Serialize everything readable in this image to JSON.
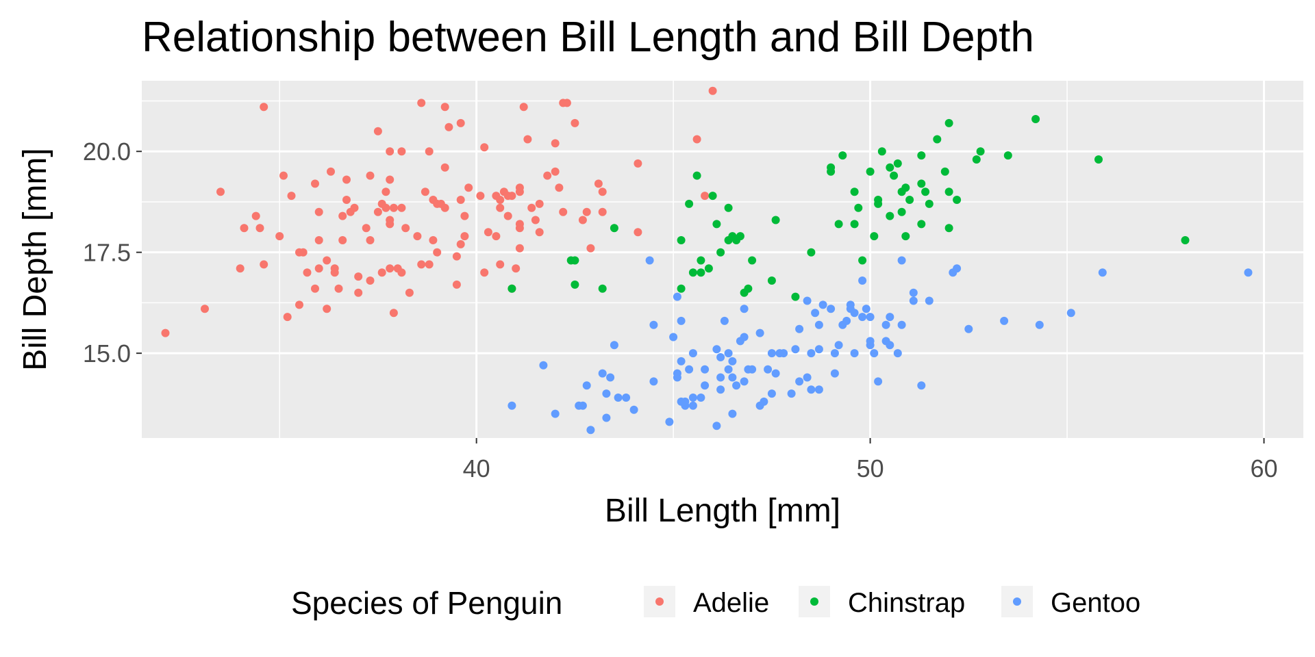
{
  "chart_data": {
    "type": "scatter",
    "title": "Relationship between Bill Length and Bill Depth",
    "xlabel": "Bill Length [mm]",
    "ylabel": "Bill Depth [mm]",
    "xlim": [
      31.5,
      61
    ],
    "ylim": [
      12.9,
      21.75
    ],
    "x_ticks": [
      40,
      50,
      60
    ],
    "y_ticks": [
      15.0,
      17.5,
      20.0
    ],
    "x_tick_labels": [
      "40",
      "50",
      "60"
    ],
    "y_tick_labels": [
      "15.0",
      "17.5",
      "20.0"
    ],
    "grid": true,
    "legend": {
      "title": "Species of Penguin",
      "position": "bottom"
    },
    "series": [
      {
        "name": "Adelie",
        "color": "#F8766D",
        "points": [
          [
            32.1,
            15.5
          ],
          [
            33.1,
            16.1
          ],
          [
            33.5,
            19.0
          ],
          [
            34.0,
            17.1
          ],
          [
            34.1,
            18.1
          ],
          [
            34.4,
            18.4
          ],
          [
            34.5,
            18.1
          ],
          [
            34.6,
            21.1
          ],
          [
            34.6,
            17.2
          ],
          [
            35.0,
            17.9
          ],
          [
            35.1,
            19.4
          ],
          [
            35.3,
            18.9
          ],
          [
            35.2,
            15.9
          ],
          [
            35.5,
            16.2
          ],
          [
            35.5,
            17.5
          ],
          [
            35.6,
            17.5
          ],
          [
            35.7,
            17.0
          ],
          [
            35.9,
            19.2
          ],
          [
            35.9,
            16.6
          ],
          [
            36.0,
            17.1
          ],
          [
            36.0,
            17.8
          ],
          [
            36.0,
            18.5
          ],
          [
            36.2,
            16.1
          ],
          [
            36.2,
            17.3
          ],
          [
            36.3,
            19.5
          ],
          [
            36.4,
            17.0
          ],
          [
            36.5,
            16.6
          ],
          [
            36.6,
            17.8
          ],
          [
            36.6,
            18.4
          ],
          [
            36.7,
            19.3
          ],
          [
            36.7,
            18.8
          ],
          [
            36.8,
            18.5
          ],
          [
            36.9,
            18.6
          ],
          [
            37.0,
            16.9
          ],
          [
            37.0,
            16.5
          ],
          [
            37.2,
            18.1
          ],
          [
            37.3,
            19.4
          ],
          [
            37.3,
            17.8
          ],
          [
            37.3,
            16.8
          ],
          [
            37.5,
            18.5
          ],
          [
            37.6,
            17.0
          ],
          [
            37.6,
            18.7
          ],
          [
            37.7,
            18.6
          ],
          [
            37.7,
            19.0
          ],
          [
            37.8,
            18.3
          ],
          [
            37.8,
            17.1
          ],
          [
            37.8,
            20.0
          ],
          [
            37.8,
            19.3
          ],
          [
            37.9,
            18.6
          ],
          [
            37.5,
            20.5
          ],
          [
            37.9,
            16.0
          ],
          [
            38.0,
            17.1
          ],
          [
            38.1,
            18.6
          ],
          [
            38.1,
            17.0
          ],
          [
            38.2,
            18.1
          ],
          [
            38.3,
            16.5
          ],
          [
            38.5,
            17.9
          ],
          [
            38.6,
            21.2
          ],
          [
            38.6,
            17.2
          ],
          [
            38.7,
            19.0
          ],
          [
            38.8,
            17.2
          ],
          [
            38.8,
            20.0
          ],
          [
            38.9,
            18.8
          ],
          [
            38.9,
            17.8
          ],
          [
            39.0,
            18.7
          ],
          [
            39.0,
            17.5
          ],
          [
            39.1,
            18.7
          ],
          [
            39.2,
            19.6
          ],
          [
            39.2,
            21.1
          ],
          [
            39.3,
            20.6
          ],
          [
            39.5,
            17.4
          ],
          [
            39.5,
            16.7
          ],
          [
            39.6,
            17.7
          ],
          [
            39.6,
            18.8
          ],
          [
            39.6,
            20.7
          ],
          [
            39.7,
            18.4
          ],
          [
            39.7,
            17.9
          ],
          [
            39.8,
            19.1
          ],
          [
            40.1,
            18.9
          ],
          [
            40.2,
            17.0
          ],
          [
            40.2,
            20.1
          ],
          [
            40.3,
            18.0
          ],
          [
            40.5,
            17.9
          ],
          [
            40.5,
            18.9
          ],
          [
            40.6,
            18.6
          ],
          [
            40.6,
            17.2
          ],
          [
            40.7,
            19.0
          ],
          [
            40.8,
            18.4
          ],
          [
            40.9,
            16.6
          ],
          [
            41.0,
            17.1
          ],
          [
            41.1,
            17.6
          ],
          [
            41.1,
            18.2
          ],
          [
            41.1,
            19.0
          ],
          [
            41.1,
            19.1
          ],
          [
            41.1,
            18.1
          ],
          [
            41.3,
            20.3
          ],
          [
            41.4,
            18.6
          ],
          [
            41.5,
            18.3
          ],
          [
            41.6,
            18.0
          ],
          [
            41.8,
            19.4
          ],
          [
            42.0,
            20.2
          ],
          [
            42.1,
            19.1
          ],
          [
            42.2,
            18.5
          ],
          [
            42.2,
            21.2
          ],
          [
            42.3,
            21.2
          ],
          [
            42.5,
            20.7
          ],
          [
            42.7,
            18.3
          ],
          [
            42.8,
            18.5
          ],
          [
            42.9,
            17.6
          ],
          [
            43.1,
            19.2
          ],
          [
            43.2,
            19.0
          ],
          [
            43.2,
            18.5
          ],
          [
            44.1,
            19.7
          ],
          [
            44.1,
            18.0
          ],
          [
            45.8,
            18.9
          ],
          [
            46.0,
            21.5
          ],
          [
            45.6,
            20.3
          ],
          [
            40.6,
            18.8
          ],
          [
            40.8,
            18.9
          ],
          [
            41.2,
            21.1
          ],
          [
            39.2,
            18.6
          ],
          [
            40.9,
            18.9
          ],
          [
            42.0,
            19.5
          ],
          [
            41.6,
            18.7
          ],
          [
            38.1,
            20.0
          ],
          [
            36.4,
            17.1
          ],
          [
            37.8,
            18.2
          ]
        ]
      },
      {
        "name": "Chinstrap",
        "color": "#00BA38",
        "points": [
          [
            40.9,
            16.6
          ],
          [
            42.4,
            17.3
          ],
          [
            42.5,
            17.3
          ],
          [
            42.5,
            16.7
          ],
          [
            43.2,
            16.6
          ],
          [
            43.5,
            18.1
          ],
          [
            45.2,
            17.8
          ],
          [
            45.2,
            16.6
          ],
          [
            45.4,
            18.7
          ],
          [
            45.5,
            17.0
          ],
          [
            45.6,
            19.4
          ],
          [
            45.7,
            17.0
          ],
          [
            45.7,
            17.3
          ],
          [
            45.9,
            17.1
          ],
          [
            46.0,
            18.9
          ],
          [
            46.1,
            18.2
          ],
          [
            46.2,
            17.5
          ],
          [
            46.4,
            18.6
          ],
          [
            46.4,
            17.8
          ],
          [
            46.5,
            17.9
          ],
          [
            46.6,
            17.8
          ],
          [
            46.7,
            17.9
          ],
          [
            46.8,
            16.5
          ],
          [
            46.9,
            16.6
          ],
          [
            47.0,
            17.3
          ],
          [
            47.5,
            16.8
          ],
          [
            47.6,
            18.3
          ],
          [
            48.1,
            16.4
          ],
          [
            48.5,
            17.5
          ],
          [
            49.0,
            19.5
          ],
          [
            49.0,
            19.6
          ],
          [
            49.2,
            18.2
          ],
          [
            49.3,
            19.9
          ],
          [
            49.6,
            19.0
          ],
          [
            49.6,
            18.2
          ],
          [
            49.7,
            18.6
          ],
          [
            49.8,
            17.3
          ],
          [
            50.0,
            19.5
          ],
          [
            50.1,
            17.9
          ],
          [
            50.2,
            18.8
          ],
          [
            50.2,
            18.7
          ],
          [
            50.3,
            20.0
          ],
          [
            50.5,
            18.4
          ],
          [
            50.5,
            19.6
          ],
          [
            50.6,
            19.4
          ],
          [
            50.7,
            19.7
          ],
          [
            50.8,
            19.0
          ],
          [
            50.8,
            18.5
          ],
          [
            50.9,
            19.1
          ],
          [
            50.9,
            17.9
          ],
          [
            51.0,
            18.8
          ],
          [
            51.3,
            19.2
          ],
          [
            51.3,
            18.2
          ],
          [
            51.3,
            19.9
          ],
          [
            51.4,
            19.0
          ],
          [
            51.5,
            18.7
          ],
          [
            51.7,
            20.3
          ],
          [
            51.9,
            19.5
          ],
          [
            52.0,
            19.0
          ],
          [
            52.0,
            18.1
          ],
          [
            52.0,
            20.7
          ],
          [
            52.2,
            18.8
          ],
          [
            52.7,
            19.8
          ],
          [
            52.8,
            20.0
          ],
          [
            53.5,
            19.9
          ],
          [
            54.2,
            20.8
          ],
          [
            55.8,
            19.8
          ],
          [
            58.0,
            17.8
          ]
        ]
      },
      {
        "name": "Gentoo",
        "color": "#619CFF",
        "points": [
          [
            40.9,
            13.7
          ],
          [
            41.7,
            14.7
          ],
          [
            42.0,
            13.5
          ],
          [
            42.6,
            13.7
          ],
          [
            42.7,
            13.7
          ],
          [
            42.8,
            14.2
          ],
          [
            42.9,
            13.1
          ],
          [
            43.2,
            14.5
          ],
          [
            43.3,
            13.4
          ],
          [
            43.3,
            14.0
          ],
          [
            43.4,
            14.4
          ],
          [
            43.5,
            15.2
          ],
          [
            43.6,
            13.9
          ],
          [
            43.8,
            13.9
          ],
          [
            44.0,
            13.6
          ],
          [
            44.4,
            17.3
          ],
          [
            44.5,
            14.3
          ],
          [
            44.5,
            15.7
          ],
          [
            44.9,
            13.3
          ],
          [
            45.0,
            15.4
          ],
          [
            45.1,
            14.4
          ],
          [
            45.1,
            14.5
          ],
          [
            45.2,
            13.8
          ],
          [
            45.2,
            14.8
          ],
          [
            45.2,
            15.8
          ],
          [
            45.3,
            13.7
          ],
          [
            45.3,
            13.8
          ],
          [
            45.4,
            14.6
          ],
          [
            45.5,
            13.7
          ],
          [
            45.5,
            13.9
          ],
          [
            45.5,
            15.0
          ],
          [
            45.7,
            13.9
          ],
          [
            45.8,
            14.2
          ],
          [
            45.8,
            14.6
          ],
          [
            46.1,
            13.2
          ],
          [
            46.1,
            15.1
          ],
          [
            46.2,
            14.1
          ],
          [
            46.2,
            14.4
          ],
          [
            46.2,
            14.9
          ],
          [
            46.3,
            15.8
          ],
          [
            46.4,
            14.6
          ],
          [
            46.4,
            15.0
          ],
          [
            46.5,
            13.5
          ],
          [
            46.5,
            14.4
          ],
          [
            46.5,
            14.8
          ],
          [
            46.6,
            14.2
          ],
          [
            46.7,
            15.3
          ],
          [
            46.8,
            14.3
          ],
          [
            46.8,
            15.4
          ],
          [
            46.8,
            16.1
          ],
          [
            46.9,
            14.6
          ],
          [
            47.2,
            13.7
          ],
          [
            47.2,
            15.5
          ],
          [
            47.3,
            13.8
          ],
          [
            47.4,
            14.6
          ],
          [
            47.5,
            14.0
          ],
          [
            47.5,
            15.0
          ],
          [
            47.6,
            14.5
          ],
          [
            47.7,
            15.0
          ],
          [
            47.8,
            15.0
          ],
          [
            48.1,
            15.1
          ],
          [
            48.2,
            14.3
          ],
          [
            48.2,
            15.6
          ],
          [
            48.4,
            14.4
          ],
          [
            48.4,
            16.3
          ],
          [
            48.5,
            14.1
          ],
          [
            48.5,
            15.0
          ],
          [
            48.6,
            16.0
          ],
          [
            48.7,
            14.1
          ],
          [
            48.7,
            15.1
          ],
          [
            48.7,
            15.7
          ],
          [
            48.8,
            16.2
          ],
          [
            49.0,
            16.1
          ],
          [
            49.1,
            14.5
          ],
          [
            49.1,
            15.0
          ],
          [
            49.2,
            15.2
          ],
          [
            49.3,
            15.7
          ],
          [
            49.4,
            15.8
          ],
          [
            49.5,
            16.1
          ],
          [
            49.5,
            16.2
          ],
          [
            49.6,
            15.0
          ],
          [
            49.6,
            16.0
          ],
          [
            49.8,
            15.9
          ],
          [
            49.8,
            16.8
          ],
          [
            49.9,
            16.1
          ],
          [
            50.0,
            15.2
          ],
          [
            50.0,
            15.3
          ],
          [
            50.0,
            15.9
          ],
          [
            50.1,
            15.0
          ],
          [
            50.2,
            14.3
          ],
          [
            50.4,
            15.3
          ],
          [
            50.4,
            15.7
          ],
          [
            50.5,
            15.2
          ],
          [
            50.5,
            15.9
          ],
          [
            50.7,
            15.0
          ],
          [
            50.8,
            15.7
          ],
          [
            50.8,
            17.3
          ],
          [
            51.1,
            16.3
          ],
          [
            51.1,
            16.5
          ],
          [
            51.3,
            14.2
          ],
          [
            51.5,
            16.3
          ],
          [
            52.1,
            17.0
          ],
          [
            52.2,
            17.1
          ],
          [
            52.5,
            15.6
          ],
          [
            53.4,
            15.8
          ],
          [
            54.3,
            15.7
          ],
          [
            55.1,
            16.0
          ],
          [
            55.9,
            17.0
          ],
          [
            59.6,
            17.0
          ],
          [
            45.1,
            16.4
          ],
          [
            47.0,
            14.6
          ],
          [
            48.0,
            14.0
          ]
        ]
      }
    ]
  }
}
